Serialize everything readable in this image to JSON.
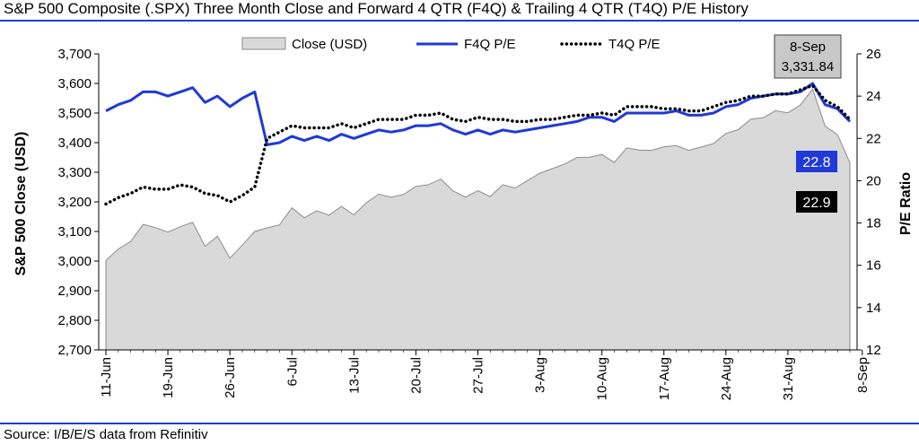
{
  "title": "S&P 500 Composite (.SPX) Three Month Close and Forward 4 QTR (F4Q) & Trailing 4 QTR (T4Q) P/E History",
  "source": "Source: I/B/E/S data from Refinitiv",
  "colors": {
    "close_fill": "#d9d9d9",
    "close_stroke": "#8c8c8c",
    "f4q": "#1f3ad6",
    "t4q": "#000000",
    "rule": "#1f3ad6"
  },
  "chart_data": {
    "type": "line",
    "y_left_label": "S&P 500 Close (USD)",
    "y_right_label": "P/E Ratio",
    "ylim_left": [
      2700,
      3700
    ],
    "ylim_right": [
      12,
      26
    ],
    "y_left_ticks": [
      "2,700",
      "2,800",
      "2,900",
      "3,000",
      "3,100",
      "3,200",
      "3,300",
      "3,400",
      "3,500",
      "3,600",
      "3,700"
    ],
    "y_right_ticks": [
      "12",
      "14",
      "16",
      "18",
      "20",
      "22",
      "24",
      "26"
    ],
    "x_ticks": [
      {
        "i": 0,
        "label": "11-Jun"
      },
      {
        "i": 5,
        "label": "19-Jun"
      },
      {
        "i": 10,
        "label": "26-Jun"
      },
      {
        "i": 15,
        "label": "6-Jul"
      },
      {
        "i": 20,
        "label": "13-Jul"
      },
      {
        "i": 25,
        "label": "20-Jul"
      },
      {
        "i": 30,
        "label": "27-Jul"
      },
      {
        "i": 35,
        "label": "3-Aug"
      },
      {
        "i": 40,
        "label": "10-Aug"
      },
      {
        "i": 45,
        "label": "17-Aug"
      },
      {
        "i": 50,
        "label": "24-Aug"
      },
      {
        "i": 55,
        "label": "31-Aug"
      },
      {
        "i": 61,
        "label": "8-Sep"
      }
    ],
    "legend": [
      "Close (USD)",
      "F4Q P/E",
      "T4Q P/E"
    ],
    "legend_position": "top",
    "callout": {
      "date": "8-Sep",
      "value": "3,331.84"
    },
    "last_f4q_label": "22.8",
    "last_t4q_label": "22.9",
    "series": [
      {
        "name": "Close (USD)",
        "kind": "area",
        "axis": "left",
        "values": [
          3002,
          3041,
          3066,
          3124,
          3113,
          3098,
          3116,
          3131,
          3050,
          3084,
          3010,
          3054,
          3100,
          3112,
          3122,
          3180,
          3146,
          3170,
          3155,
          3185,
          3156,
          3197,
          3226,
          3216,
          3225,
          3252,
          3258,
          3277,
          3237,
          3216,
          3238,
          3218,
          3258,
          3247,
          3272,
          3297,
          3312,
          3328,
          3350,
          3351,
          3360,
          3333,
          3382,
          3375,
          3374,
          3386,
          3390,
          3374,
          3385,
          3397,
          3431,
          3444,
          3479,
          3484,
          3508,
          3501,
          3527,
          3581,
          3456,
          3427,
          3332
        ]
      },
      {
        "name": "F4Q P/E",
        "kind": "line",
        "axis": "right",
        "values": [
          23.3,
          23.6,
          23.8,
          24.2,
          24.2,
          24.0,
          24.2,
          24.4,
          23.7,
          24.0,
          23.5,
          23.9,
          24.2,
          21.7,
          21.8,
          22.1,
          21.9,
          22.1,
          21.9,
          22.2,
          22.0,
          22.2,
          22.4,
          22.3,
          22.4,
          22.6,
          22.6,
          22.7,
          22.4,
          22.2,
          22.4,
          22.2,
          22.4,
          22.3,
          22.4,
          22.5,
          22.6,
          22.7,
          22.8,
          23.0,
          23.0,
          22.8,
          23.2,
          23.2,
          23.2,
          23.2,
          23.3,
          23.1,
          23.1,
          23.2,
          23.5,
          23.6,
          23.9,
          24.0,
          24.1,
          24.1,
          24.2,
          24.6,
          23.6,
          23.4,
          22.8
        ]
      },
      {
        "name": "T4Q P/E",
        "kind": "line",
        "axis": "right",
        "values": [
          18.9,
          19.2,
          19.4,
          19.7,
          19.6,
          19.6,
          19.8,
          19.7,
          19.4,
          19.3,
          19.0,
          19.3,
          19.7,
          22.0,
          22.3,
          22.6,
          22.5,
          22.5,
          22.5,
          22.7,
          22.5,
          22.7,
          22.9,
          22.9,
          22.9,
          23.1,
          23.1,
          23.2,
          22.9,
          22.8,
          23.0,
          22.9,
          22.9,
          22.8,
          22.8,
          22.9,
          22.9,
          23.0,
          23.1,
          23.1,
          23.2,
          23.1,
          23.5,
          23.5,
          23.5,
          23.4,
          23.4,
          23.3,
          23.3,
          23.5,
          23.7,
          23.8,
          24.0,
          24.0,
          24.1,
          24.1,
          24.3,
          24.5,
          23.8,
          23.5,
          22.9
        ]
      }
    ]
  }
}
